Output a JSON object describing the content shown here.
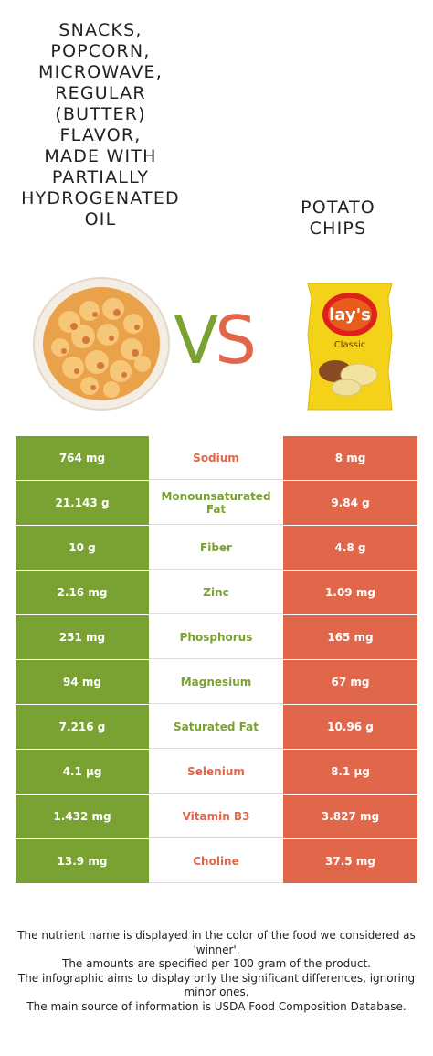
{
  "header": {
    "left_food": "Snacks, popcorn, microwave, regular (butter) flavor, made with partially hydrogenated oil",
    "left_food_lines": [
      "SNACKS,",
      "POPCORN,",
      "MICROWAVE,",
      "REGULAR",
      "(BUTTER)",
      "FLAVOR,",
      "MADE WITH",
      "PARTIALLY",
      "HYDROGENATED",
      "OIL"
    ],
    "right_food_lines": [
      "POTATO",
      "CHIPS"
    ],
    "vs_v": "V",
    "vs_s": "S"
  },
  "colors": {
    "left": "#7aa232",
    "right": "#e0674a"
  },
  "bag": {
    "brand": "lay's",
    "variant": "Classic"
  },
  "nutrients": [
    {
      "left": "764 mg",
      "name": "Sodium",
      "right": "8 mg",
      "winner": "right"
    },
    {
      "left": "21.143 g",
      "name": "Monounsaturated Fat",
      "right": "9.84 g",
      "winner": "left"
    },
    {
      "left": "10 g",
      "name": "Fiber",
      "right": "4.8 g",
      "winner": "left"
    },
    {
      "left": "2.16 mg",
      "name": "Zinc",
      "right": "1.09 mg",
      "winner": "left"
    },
    {
      "left": "251 mg",
      "name": "Phosphorus",
      "right": "165 mg",
      "winner": "left"
    },
    {
      "left": "94 mg",
      "name": "Magnesium",
      "right": "67 mg",
      "winner": "left"
    },
    {
      "left": "7.216 g",
      "name": "Saturated Fat",
      "right": "10.96 g",
      "winner": "left"
    },
    {
      "left": "4.1 µg",
      "name": "Selenium",
      "right": "8.1 µg",
      "winner": "right"
    },
    {
      "left": "1.432 mg",
      "name": "Vitamin B3",
      "right": "3.827 mg",
      "winner": "right"
    },
    {
      "left": "13.9 mg",
      "name": "Choline",
      "right": "37.5 mg",
      "winner": "right"
    }
  ],
  "footer": {
    "line1": "The nutrient name is displayed in the color of the food we considered as 'winner'.",
    "line2": "The amounts are specified per 100 gram of the product.",
    "line3": "The infographic aims to display only the significant differences, ignoring minor ones.",
    "line4": "The main source of information is USDA Food Composition Database."
  }
}
